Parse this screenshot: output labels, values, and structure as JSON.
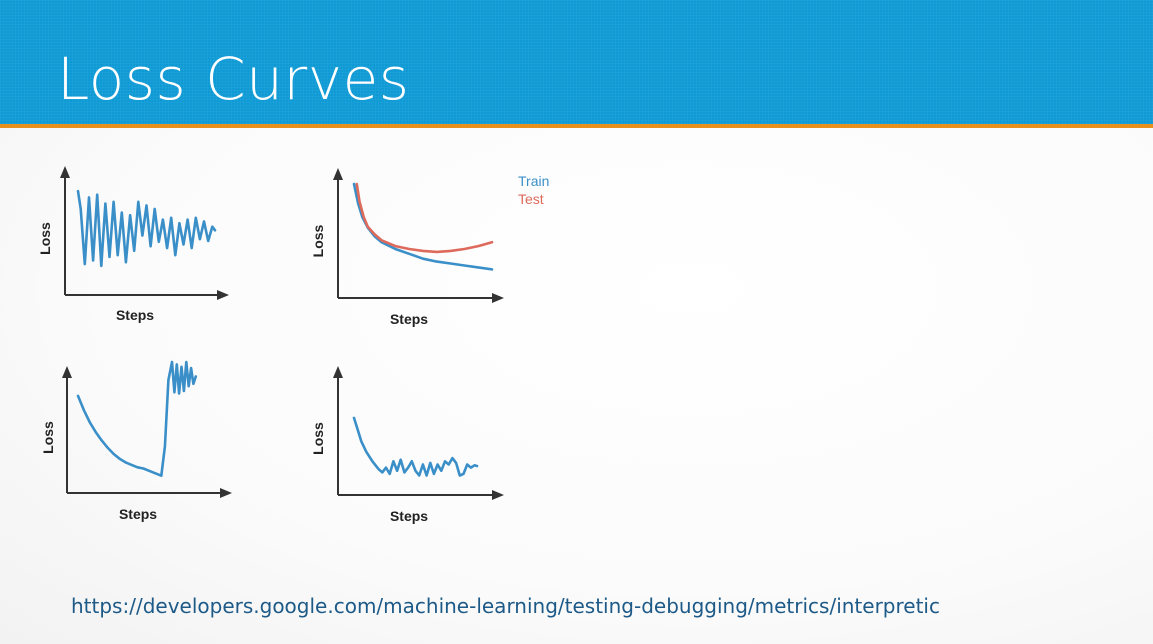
{
  "slide": {
    "title": "Loss Curves",
    "source_url": "https://developers.google.com/machine-learning/testing-debugging/metrics/interpretic"
  },
  "colors": {
    "header": "#0f9ad5",
    "header_rule": "#e8901e",
    "train": "#3a8fc8",
    "test": "#dd6a5b",
    "single_series": "#3a8fc8"
  },
  "chart_data": [
    {
      "type": "line",
      "xlabel": "Steps",
      "ylabel": "Loss",
      "series": [
        {
          "x": [
            0,
            0.2,
            0.5,
            0.8,
            1.1,
            1.4,
            1.7,
            2.0,
            2.3,
            2.6,
            2.9,
            3.2,
            3.5,
            3.8,
            4.1,
            4.4,
            4.7,
            5.0,
            5.3,
            5.6,
            5.9,
            6.2,
            6.5,
            6.8,
            7.1,
            7.4,
            7.7,
            8.0,
            8.3,
            8.6,
            8.9,
            9.2,
            9.5,
            9.8,
            10.0
          ],
          "y": [
            0.92,
            0.72,
            0.1,
            0.85,
            0.14,
            0.88,
            0.08,
            0.78,
            0.18,
            0.8,
            0.2,
            0.68,
            0.12,
            0.65,
            0.25,
            0.8,
            0.42,
            0.76,
            0.3,
            0.72,
            0.35,
            0.6,
            0.28,
            0.62,
            0.2,
            0.56,
            0.32,
            0.6,
            0.28,
            0.62,
            0.38,
            0.58,
            0.36,
            0.52,
            0.48
          ]
        }
      ]
    },
    {
      "type": "line",
      "xlabel": "Steps",
      "ylabel": "Loss",
      "legend": "top-right",
      "series": [
        {
          "name": "Train",
          "x": [
            0,
            0.3,
            0.6,
            1,
            1.5,
            2,
            3,
            4,
            5,
            6,
            7,
            8,
            9,
            10
          ],
          "y": [
            1.0,
            0.8,
            0.66,
            0.55,
            0.46,
            0.4,
            0.33,
            0.28,
            0.23,
            0.2,
            0.18,
            0.16,
            0.14,
            0.12
          ]
        },
        {
          "name": "Test",
          "x": [
            0.2,
            0.4,
            0.7,
            1,
            1.5,
            2,
            3,
            4,
            5,
            6,
            7,
            8,
            9,
            10
          ],
          "y": [
            1.0,
            0.82,
            0.66,
            0.56,
            0.48,
            0.42,
            0.36,
            0.33,
            0.31,
            0.3,
            0.31,
            0.33,
            0.36,
            0.4
          ]
        }
      ]
    },
    {
      "type": "line",
      "xlabel": "Steps",
      "ylabel": "Loss",
      "series": [
        {
          "x": [
            0,
            0.5,
            1,
            1.5,
            2,
            2.5,
            3,
            3.5,
            4,
            4.5,
            5,
            5.5,
            6,
            6.5,
            7,
            7.3,
            7.6,
            7.9,
            8.1,
            8.3,
            8.5,
            8.7,
            8.9,
            9.1,
            9.3,
            9.5,
            9.7,
            9.9
          ],
          "y": [
            0.72,
            0.6,
            0.5,
            0.42,
            0.35,
            0.29,
            0.24,
            0.2,
            0.17,
            0.15,
            0.13,
            0.12,
            0.1,
            0.08,
            0.06,
            0.3,
            0.85,
            1.0,
            0.75,
            0.98,
            0.74,
            0.96,
            0.76,
            1.0,
            0.8,
            0.95,
            0.82,
            0.88
          ]
        }
      ]
    },
    {
      "type": "line",
      "xlabel": "Steps",
      "ylabel": "Loss",
      "series": [
        {
          "x": [
            0,
            0.3,
            0.6,
            1,
            1.5,
            2,
            2.3,
            2.6,
            2.9,
            3.2,
            3.5,
            3.8,
            4.1,
            4.4,
            4.7,
            5,
            5.3,
            5.6,
            5.9,
            6.2,
            6.5,
            6.8,
            7.1,
            7.4,
            7.7,
            8,
            8.3,
            8.6,
            8.9,
            9.2,
            9.5,
            9.8,
            10
          ],
          "y": [
            0.85,
            0.7,
            0.55,
            0.42,
            0.3,
            0.2,
            0.16,
            0.22,
            0.14,
            0.3,
            0.18,
            0.32,
            0.16,
            0.22,
            0.3,
            0.18,
            0.12,
            0.26,
            0.12,
            0.28,
            0.14,
            0.26,
            0.18,
            0.3,
            0.26,
            0.34,
            0.28,
            0.12,
            0.14,
            0.26,
            0.22,
            0.25,
            0.24
          ]
        }
      ]
    }
  ]
}
